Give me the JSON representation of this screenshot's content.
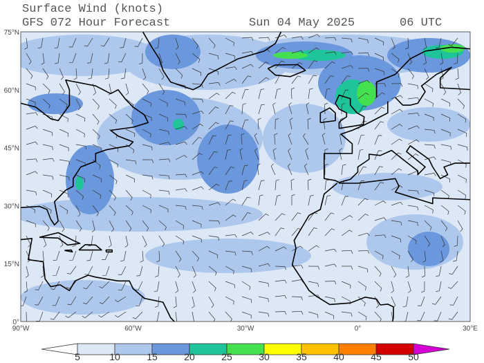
{
  "header": {
    "title": "Surface Wind (knots)",
    "model": "GFS 072 Hour Forecast",
    "date": "Sun 04 May 2025",
    "time": "06 UTC"
  },
  "latitude_labels": [
    "75°N",
    "60°N",
    "45°N",
    "30°N",
    "15°N",
    "0°"
  ],
  "longitude_labels": [
    "90°W",
    "60°W",
    "30°W",
    "0°",
    "30°E"
  ],
  "colorbar": {
    "levels": [
      5,
      10,
      15,
      20,
      25,
      30,
      35,
      40,
      45,
      50
    ],
    "colors": [
      "#ffffff",
      "#dde8f6",
      "#aec7ec",
      "#6b97dd",
      "#20c49a",
      "#45e04f",
      "#ffff00",
      "#ffc200",
      "#ff8000",
      "#d40000",
      "#d400d4"
    ]
  }
}
